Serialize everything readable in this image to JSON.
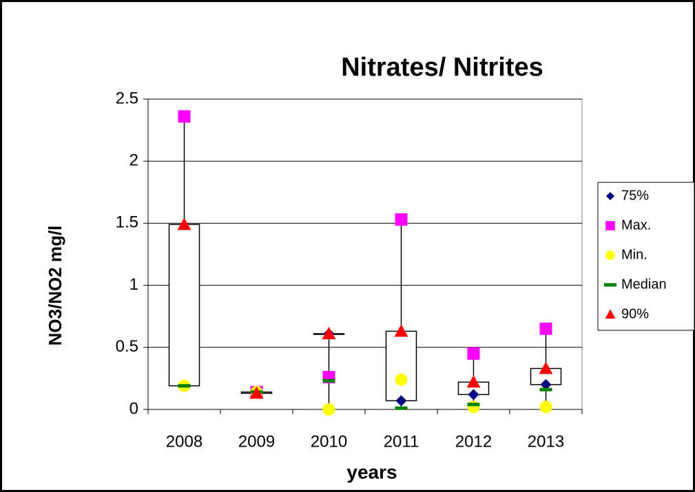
{
  "chart_data": {
    "type": "stock-box",
    "title": "Nitrates/ Nitrites",
    "x_label": "years",
    "y_label": "NO3/NO2 mg/l",
    "categories": [
      "2008",
      "2009",
      "2010",
      "2011",
      "2012",
      "2013"
    ],
    "series": [
      {
        "name": "75%",
        "color": "#000080",
        "marker": "diamond",
        "values": [
          0.19,
          0.14,
          0.61,
          0.07,
          0.12,
          0.2
        ]
      },
      {
        "name": "Max.",
        "color": "#ff00ff",
        "marker": "square",
        "values": [
          2.36,
          0.14,
          0.26,
          1.53,
          0.45,
          0.65
        ]
      },
      {
        "name": "Min.",
        "color": "#ffff00",
        "marker": "circle",
        "values": [
          0.19,
          0.14,
          0.0,
          0.24,
          0.02,
          0.02
        ]
      },
      {
        "name": "Median",
        "color": "#008000",
        "marker": "dash",
        "values": [
          0.19,
          0.14,
          0.23,
          0.01,
          0.04,
          0.16
        ]
      },
      {
        "name": "90%",
        "color": "#ff0000",
        "marker": "triangle",
        "values": [
          1.49,
          0.13,
          0.61,
          0.63,
          0.22,
          0.33
        ]
      }
    ],
    "ylim": [
      0,
      2.5
    ],
    "yticks": [
      0,
      0.5,
      1,
      1.5,
      2,
      2.5
    ],
    "grid": true
  }
}
